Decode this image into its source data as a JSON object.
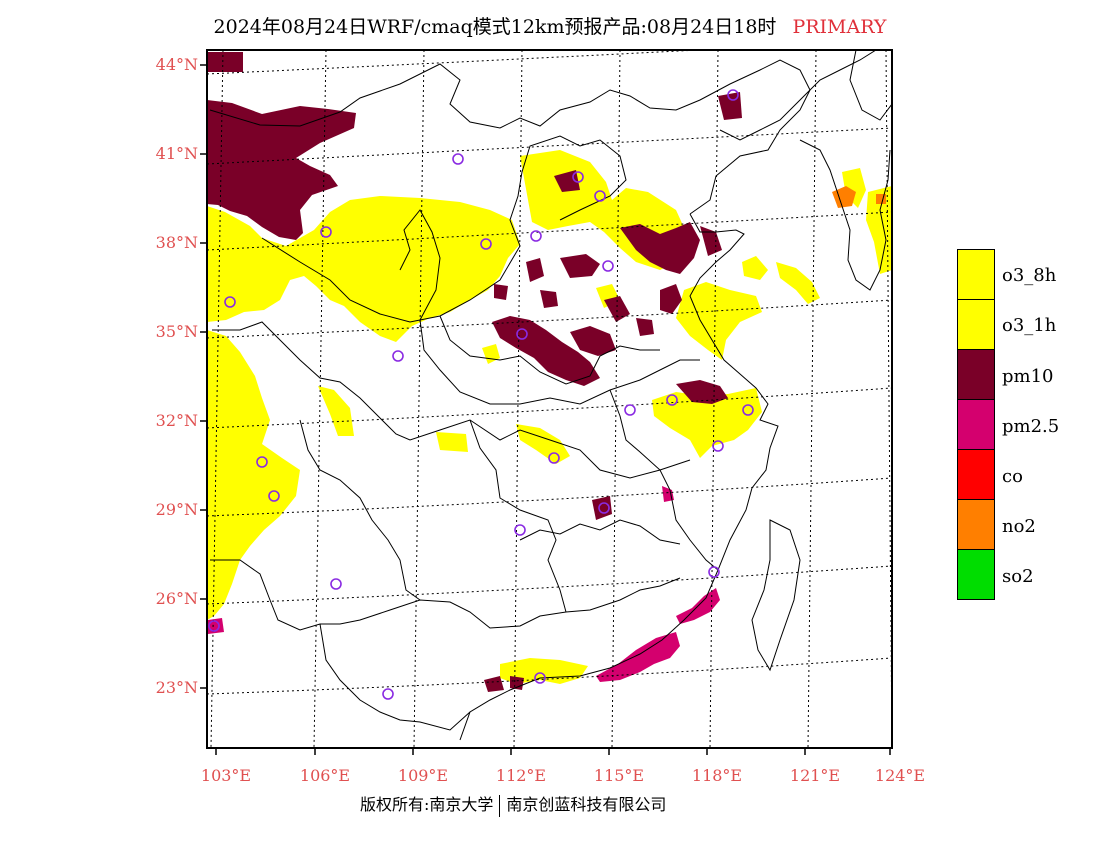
{
  "title": {
    "main": "2024年08月24日WRF/cmaq模式12km预报产品:08月24日18时",
    "tag": "PRIMARY"
  },
  "axes": {
    "lat_labels": [
      "44°N",
      "41°N",
      "38°N",
      "35°N",
      "32°N",
      "29°N",
      "26°N",
      "23°N"
    ],
    "lon_labels": [
      "103°E",
      "106°E",
      "109°E",
      "112°E",
      "115°E",
      "118°E",
      "121°E",
      "124°E"
    ]
  },
  "legend": [
    {
      "label": "o3_8h",
      "color": "#ffff00"
    },
    {
      "label": "o3_1h",
      "color": "#ffff00"
    },
    {
      "label": "pm10",
      "color": "#7a0028"
    },
    {
      "label": "pm2.5",
      "color": "#d4006e"
    },
    {
      "label": "co",
      "color": "#ff0000"
    },
    {
      "label": "no2",
      "color": "#ff7f00"
    },
    {
      "label": "so2",
      "color": "#00dd00"
    }
  ],
  "footer": {
    "left": "版权所有:南京大学",
    "right": "南京创蓝科技有限公司"
  }
}
